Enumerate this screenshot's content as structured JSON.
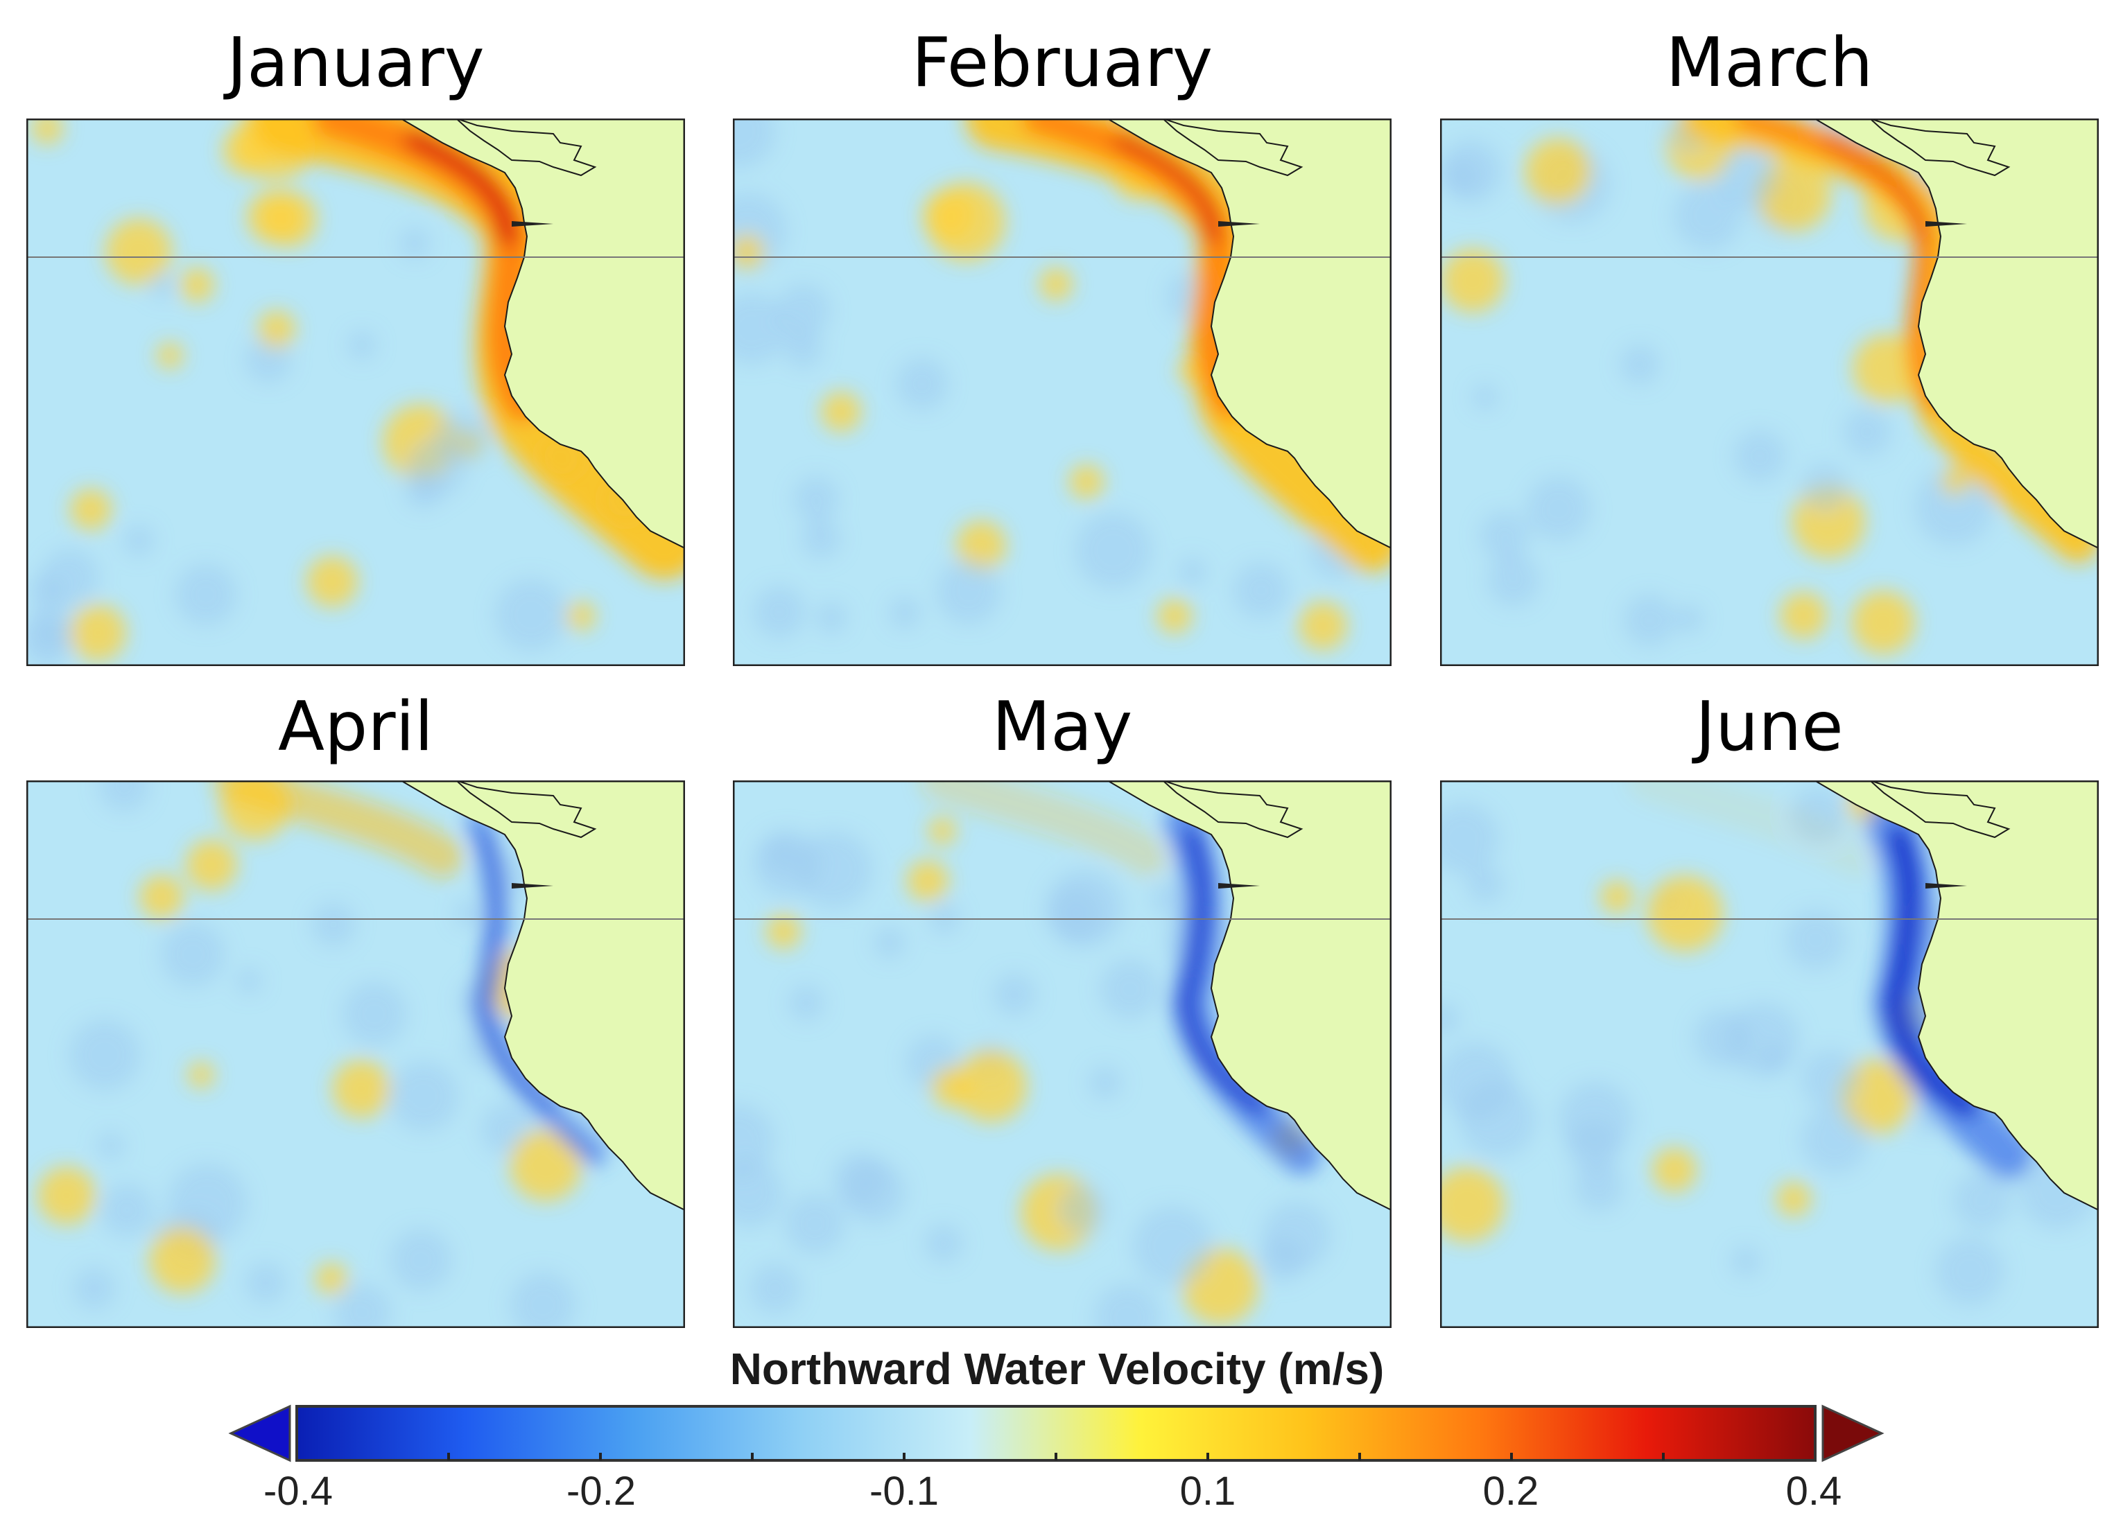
{
  "panels": [
    {
      "title": "January",
      "regime": "northward",
      "strength": 1.0
    },
    {
      "title": "February",
      "regime": "northward",
      "strength": 0.8
    },
    {
      "title": "March",
      "regime": "northward",
      "strength": 0.55
    },
    {
      "title": "April",
      "regime": "southward",
      "strength": 0.45
    },
    {
      "title": "May",
      "regime": "southward",
      "strength": 0.8
    },
    {
      "title": "June",
      "regime": "southward",
      "strength": 1.0
    }
  ],
  "colorbar": {
    "title": "Northward Water Velocity (m/s)",
    "ticks": [
      "-0.4",
      "-0.2",
      "-0.1",
      "0.1",
      "0.2",
      "0.4"
    ],
    "extend": "both",
    "colors": [
      "#0a1fb4",
      "#1f5cf0",
      "#4aa0f2",
      "#8fd0f5",
      "#c8eef8",
      "#fff23a",
      "#ffc21a",
      "#ff7a10",
      "#e81a0a",
      "#8a0a0a"
    ]
  },
  "map": {
    "land_color": "#e4f9b4",
    "ocean_background": "#b7e6f7",
    "northward_color": "#ffc21a",
    "strong_north_color": "#e82a0a",
    "southward_color": "#1030d0"
  }
}
